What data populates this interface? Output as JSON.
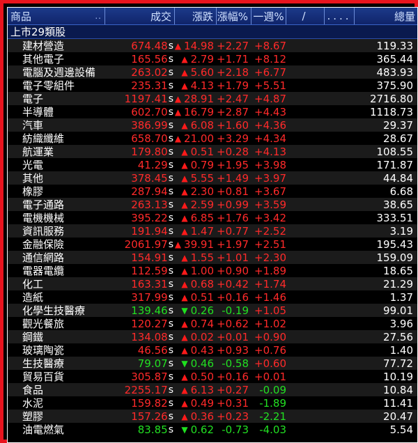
{
  "header": {
    "name": "商品",
    "dots_a": "..",
    "price": "成交",
    "change": "漲跌",
    "pct": "漲幅%",
    "week": "一週%",
    "slash": "/",
    "dots_b": "....",
    "volume": "總量"
  },
  "group": {
    "label": "上市29類股"
  },
  "colors": {
    "up": "#ff2a2a",
    "down": "#22e022",
    "border": "#e8141e",
    "header_bg": "#1c3a8a"
  },
  "rows": [
    {
      "name": "建材營造",
      "price": "674.48",
      "suffix": "s",
      "dir": "up",
      "change": "14.98",
      "pct": "+2.27",
      "week": "+8.67",
      "week_dir": "up",
      "volume": "119.33"
    },
    {
      "name": "其他電子",
      "price": "165.56",
      "suffix": "s",
      "dir": "up",
      "change": "2.79",
      "pct": "+1.71",
      "week": "+8.12",
      "week_dir": "up",
      "volume": "365.44"
    },
    {
      "name": "電腦及週邊設備",
      "price": "263.02",
      "suffix": "s",
      "dir": "up",
      "change": "5.60",
      "pct": "+2.18",
      "week": "+6.77",
      "week_dir": "up",
      "volume": "483.93"
    },
    {
      "name": "電子零組件",
      "price": "235.31",
      "suffix": "s",
      "dir": "up",
      "change": "4.13",
      "pct": "+1.79",
      "week": "+5.51",
      "week_dir": "up",
      "volume": "375.90"
    },
    {
      "name": "電子",
      "price": "1197.41",
      "suffix": "s",
      "dir": "up",
      "change": "28.91",
      "pct": "+2.47",
      "week": "+4.87",
      "week_dir": "up",
      "volume": "2716.80"
    },
    {
      "name": "半導體",
      "price": "602.70",
      "suffix": "s",
      "dir": "up",
      "change": "16.79",
      "pct": "+2.87",
      "week": "+4.43",
      "week_dir": "up",
      "volume": "1118.73"
    },
    {
      "name": "汽車",
      "price": "386.99",
      "suffix": "s",
      "dir": "up",
      "change": "6.08",
      "pct": "+1.60",
      "week": "+4.36",
      "week_dir": "up",
      "volume": "29.37"
    },
    {
      "name": "紡織纖維",
      "price": "658.70",
      "suffix": "s",
      "dir": "up",
      "change": "21.00",
      "pct": "+3.29",
      "week": "+4.34",
      "week_dir": "up",
      "volume": "28.67"
    },
    {
      "name": "航運業",
      "price": "179.80",
      "suffix": "s",
      "dir": "up",
      "change": "0.51",
      "pct": "+0.28",
      "week": "+4.13",
      "week_dir": "up",
      "volume": "108.55"
    },
    {
      "name": "光電",
      "price": "41.29",
      "suffix": "s",
      "dir": "up",
      "change": "0.79",
      "pct": "+1.95",
      "week": "+3.98",
      "week_dir": "up",
      "volume": "171.87"
    },
    {
      "name": "其他",
      "price": "378.45",
      "suffix": "s",
      "dir": "up",
      "change": "5.55",
      "pct": "+1.49",
      "week": "+3.97",
      "week_dir": "up",
      "volume": "44.84"
    },
    {
      "name": "橡膠",
      "price": "287.94",
      "suffix": "s",
      "dir": "up",
      "change": "2.30",
      "pct": "+0.81",
      "week": "+3.67",
      "week_dir": "up",
      "volume": "6.68"
    },
    {
      "name": "電子通路",
      "price": "263.13",
      "suffix": "s",
      "dir": "up",
      "change": "2.59",
      "pct": "+0.99",
      "week": "+3.59",
      "week_dir": "up",
      "volume": "38.65"
    },
    {
      "name": "電機機械",
      "price": "395.22",
      "suffix": "s",
      "dir": "up",
      "change": "6.85",
      "pct": "+1.76",
      "week": "+3.42",
      "week_dir": "up",
      "volume": "333.51"
    },
    {
      "name": "資訊服務",
      "price": "191.94",
      "suffix": "s",
      "dir": "up",
      "change": "1.47",
      "pct": "+0.77",
      "week": "+2.52",
      "week_dir": "up",
      "volume": "3.19"
    },
    {
      "name": "金融保險",
      "price": "2061.97",
      "suffix": "s",
      "dir": "up",
      "change": "39.91",
      "pct": "+1.97",
      "week": "+2.51",
      "week_dir": "up",
      "volume": "195.43"
    },
    {
      "name": "通信網路",
      "price": "154.91",
      "suffix": "s",
      "dir": "up",
      "change": "1.55",
      "pct": "+1.01",
      "week": "+2.30",
      "week_dir": "up",
      "volume": "159.09"
    },
    {
      "name": "電器電纜",
      "price": "112.59",
      "suffix": "s",
      "dir": "up",
      "change": "1.00",
      "pct": "+0.90",
      "week": "+1.89",
      "week_dir": "up",
      "volume": "18.65"
    },
    {
      "name": "化工",
      "price": "163.31",
      "suffix": "s",
      "dir": "up",
      "change": "0.68",
      "pct": "+0.42",
      "week": "+1.74",
      "week_dir": "up",
      "volume": "21.29"
    },
    {
      "name": "造紙",
      "price": "317.99",
      "suffix": "s",
      "dir": "up",
      "change": "0.51",
      "pct": "+0.16",
      "week": "+1.46",
      "week_dir": "up",
      "volume": "1.37"
    },
    {
      "name": "化學生技醫療",
      "price": "139.46",
      "suffix": "s",
      "dir": "down",
      "change": "0.26",
      "pct": "-0.19",
      "week": "+1.05",
      "week_dir": "up",
      "volume": "99.01"
    },
    {
      "name": "觀光餐旅",
      "price": "120.27",
      "suffix": "s",
      "dir": "up",
      "change": "0.74",
      "pct": "+0.62",
      "week": "+1.02",
      "week_dir": "up",
      "volume": "3.96"
    },
    {
      "name": "鋼鐵",
      "price": "134.08",
      "suffix": "s",
      "dir": "up",
      "change": "0.02",
      "pct": "+0.01",
      "week": "+0.90",
      "week_dir": "up",
      "volume": "27.56"
    },
    {
      "name": "玻璃陶瓷",
      "price": "46.56",
      "suffix": "s",
      "dir": "up",
      "change": "0.43",
      "pct": "+0.93",
      "week": "+0.76",
      "week_dir": "up",
      "volume": "1.40"
    },
    {
      "name": "生技醫療",
      "price": "79.07",
      "suffix": "s",
      "dir": "down",
      "change": "0.46",
      "pct": "-0.58",
      "week": "+0.60",
      "week_dir": "up",
      "volume": "77.72"
    },
    {
      "name": "貿易百貨",
      "price": "305.87",
      "suffix": "s",
      "dir": "up",
      "change": "0.50",
      "pct": "+0.16",
      "week": "+0.01",
      "week_dir": "up",
      "volume": "10.19"
    },
    {
      "name": "食品",
      "price": "2255.17",
      "suffix": "s",
      "dir": "up",
      "change": "6.13",
      "pct": "+0.27",
      "week": "-0.09",
      "week_dir": "down",
      "volume": "10.84"
    },
    {
      "name": "水泥",
      "price": "159.82",
      "suffix": "s",
      "dir": "up",
      "change": "0.49",
      "pct": "+0.31",
      "week": "-1.89",
      "week_dir": "down",
      "volume": "11.41"
    },
    {
      "name": "塑膠",
      "price": "157.26",
      "suffix": "s",
      "dir": "up",
      "change": "0.36",
      "pct": "+0.23",
      "week": "-2.21",
      "week_dir": "down",
      "volume": "20.47"
    },
    {
      "name": "油電燃氣",
      "price": "83.85",
      "suffix": "s",
      "dir": "down",
      "change": "0.62",
      "pct": "-0.73",
      "week": "-4.03",
      "week_dir": "down",
      "volume": "5.54"
    }
  ]
}
